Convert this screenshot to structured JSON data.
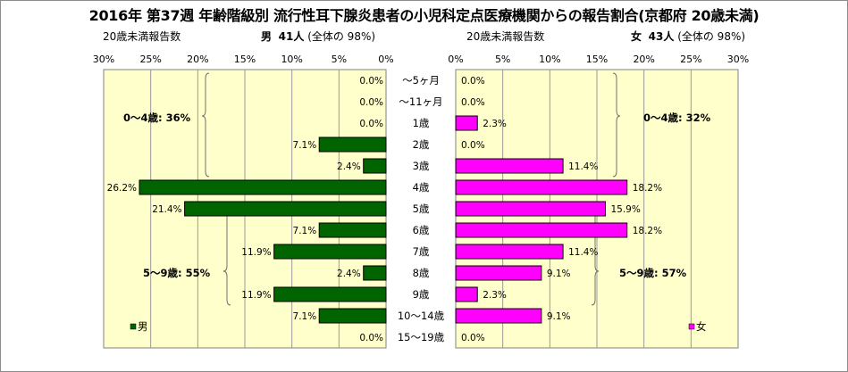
{
  "title": "2016年 第37週 年齢階級別 流行性耳下腺炎患者の小児科定点医療機関からの報告割合(京都府 20歳未満)",
  "left_header": {
    "label": "20歳未満報告数",
    "sex": "男",
    "count": "41人",
    "share": "(全体の 98%)"
  },
  "right_header": {
    "label": "20歳未満報告数",
    "sex": "女",
    "count": "43人",
    "share": "(全体の 98%)"
  },
  "legend": {
    "male": "男",
    "female": "女"
  },
  "colors": {
    "male": "#006400",
    "female": "#ff00ff",
    "plot_bg": "#ffffcc",
    "grid": "#9a9a9a"
  },
  "chart_data": {
    "type": "bar",
    "orientation": "horizontal-butterfly",
    "categories": [
      "～5ヶ月",
      "～11ヶ月",
      "1歳",
      "2歳",
      "3歳",
      "4歳",
      "5歳",
      "6歳",
      "7歳",
      "8歳",
      "9歳",
      "10～14歳",
      "15～19歳"
    ],
    "series": [
      {
        "name": "男",
        "values": [
          0.0,
          0.0,
          0.0,
          7.1,
          2.4,
          26.2,
          21.4,
          7.1,
          11.9,
          2.4,
          11.9,
          7.1,
          0.0
        ],
        "labels": [
          "0.0%",
          "0.0%",
          "0.0%",
          "7.1%",
          "2.4%",
          "26.2%",
          "21.4%",
          "7.1%",
          "11.9%",
          "2.4%",
          "11.9%",
          "7.1%",
          "0.0%"
        ]
      },
      {
        "name": "女",
        "values": [
          0.0,
          0.0,
          2.3,
          0.0,
          11.4,
          18.2,
          15.9,
          18.2,
          11.4,
          9.1,
          2.3,
          9.1,
          0.0
        ],
        "labels": [
          "0.0%",
          "0.0%",
          "2.3%",
          "0.0%",
          "11.4%",
          "18.2%",
          "15.9%",
          "18.2%",
          "11.4%",
          "9.1%",
          "2.3%",
          "9.1%",
          "0.0%"
        ]
      }
    ],
    "xlim": [
      0,
      30
    ],
    "ticks": [
      "0%",
      "5%",
      "10%",
      "15%",
      "20%",
      "25%",
      "30%"
    ],
    "grid": true,
    "annotations": {
      "male_young": "0～4歳: 36%",
      "male_school": "5～9歳: 55%",
      "female_young": "0～4歳: 32%",
      "female_school": "5～9歳: 57%"
    }
  }
}
